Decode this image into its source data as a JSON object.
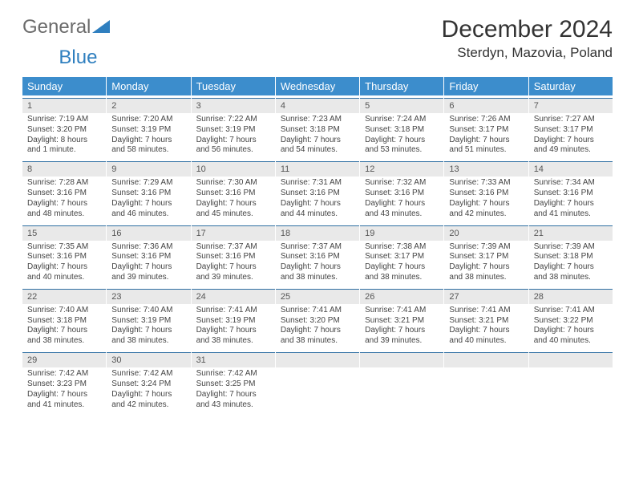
{
  "brand": {
    "part1": "General",
    "part2": "Blue"
  },
  "title": "December 2024",
  "location": "Sterdyn, Mazovia, Poland",
  "colors": {
    "header_bg": "#3c8dcc",
    "header_text": "#ffffff",
    "band_bg": "#e9e9e9",
    "band_border": "#2f6fa3",
    "page_bg": "#ffffff",
    "text": "#333333",
    "logo_gray": "#6b6b6b",
    "logo_blue": "#2f7fbf"
  },
  "typography": {
    "title_fontsize": 30,
    "location_fontsize": 17,
    "header_fontsize": 13,
    "daynum_fontsize": 11,
    "body_fontsize": 10
  },
  "headers": [
    "Sunday",
    "Monday",
    "Tuesday",
    "Wednesday",
    "Thursday",
    "Friday",
    "Saturday"
  ],
  "weeks": [
    [
      {
        "n": "1",
        "sr": "Sunrise: 7:19 AM",
        "ss": "Sunset: 3:20 PM",
        "d1": "Daylight: 8 hours",
        "d2": "and 1 minute."
      },
      {
        "n": "2",
        "sr": "Sunrise: 7:20 AM",
        "ss": "Sunset: 3:19 PM",
        "d1": "Daylight: 7 hours",
        "d2": "and 58 minutes."
      },
      {
        "n": "3",
        "sr": "Sunrise: 7:22 AM",
        "ss": "Sunset: 3:19 PM",
        "d1": "Daylight: 7 hours",
        "d2": "and 56 minutes."
      },
      {
        "n": "4",
        "sr": "Sunrise: 7:23 AM",
        "ss": "Sunset: 3:18 PM",
        "d1": "Daylight: 7 hours",
        "d2": "and 54 minutes."
      },
      {
        "n": "5",
        "sr": "Sunrise: 7:24 AM",
        "ss": "Sunset: 3:18 PM",
        "d1": "Daylight: 7 hours",
        "d2": "and 53 minutes."
      },
      {
        "n": "6",
        "sr": "Sunrise: 7:26 AM",
        "ss": "Sunset: 3:17 PM",
        "d1": "Daylight: 7 hours",
        "d2": "and 51 minutes."
      },
      {
        "n": "7",
        "sr": "Sunrise: 7:27 AM",
        "ss": "Sunset: 3:17 PM",
        "d1": "Daylight: 7 hours",
        "d2": "and 49 minutes."
      }
    ],
    [
      {
        "n": "8",
        "sr": "Sunrise: 7:28 AM",
        "ss": "Sunset: 3:16 PM",
        "d1": "Daylight: 7 hours",
        "d2": "and 48 minutes."
      },
      {
        "n": "9",
        "sr": "Sunrise: 7:29 AM",
        "ss": "Sunset: 3:16 PM",
        "d1": "Daylight: 7 hours",
        "d2": "and 46 minutes."
      },
      {
        "n": "10",
        "sr": "Sunrise: 7:30 AM",
        "ss": "Sunset: 3:16 PM",
        "d1": "Daylight: 7 hours",
        "d2": "and 45 minutes."
      },
      {
        "n": "11",
        "sr": "Sunrise: 7:31 AM",
        "ss": "Sunset: 3:16 PM",
        "d1": "Daylight: 7 hours",
        "d2": "and 44 minutes."
      },
      {
        "n": "12",
        "sr": "Sunrise: 7:32 AM",
        "ss": "Sunset: 3:16 PM",
        "d1": "Daylight: 7 hours",
        "d2": "and 43 minutes."
      },
      {
        "n": "13",
        "sr": "Sunrise: 7:33 AM",
        "ss": "Sunset: 3:16 PM",
        "d1": "Daylight: 7 hours",
        "d2": "and 42 minutes."
      },
      {
        "n": "14",
        "sr": "Sunrise: 7:34 AM",
        "ss": "Sunset: 3:16 PM",
        "d1": "Daylight: 7 hours",
        "d2": "and 41 minutes."
      }
    ],
    [
      {
        "n": "15",
        "sr": "Sunrise: 7:35 AM",
        "ss": "Sunset: 3:16 PM",
        "d1": "Daylight: 7 hours",
        "d2": "and 40 minutes."
      },
      {
        "n": "16",
        "sr": "Sunrise: 7:36 AM",
        "ss": "Sunset: 3:16 PM",
        "d1": "Daylight: 7 hours",
        "d2": "and 39 minutes."
      },
      {
        "n": "17",
        "sr": "Sunrise: 7:37 AM",
        "ss": "Sunset: 3:16 PM",
        "d1": "Daylight: 7 hours",
        "d2": "and 39 minutes."
      },
      {
        "n": "18",
        "sr": "Sunrise: 7:37 AM",
        "ss": "Sunset: 3:16 PM",
        "d1": "Daylight: 7 hours",
        "d2": "and 38 minutes."
      },
      {
        "n": "19",
        "sr": "Sunrise: 7:38 AM",
        "ss": "Sunset: 3:17 PM",
        "d1": "Daylight: 7 hours",
        "d2": "and 38 minutes."
      },
      {
        "n": "20",
        "sr": "Sunrise: 7:39 AM",
        "ss": "Sunset: 3:17 PM",
        "d1": "Daylight: 7 hours",
        "d2": "and 38 minutes."
      },
      {
        "n": "21",
        "sr": "Sunrise: 7:39 AM",
        "ss": "Sunset: 3:18 PM",
        "d1": "Daylight: 7 hours",
        "d2": "and 38 minutes."
      }
    ],
    [
      {
        "n": "22",
        "sr": "Sunrise: 7:40 AM",
        "ss": "Sunset: 3:18 PM",
        "d1": "Daylight: 7 hours",
        "d2": "and 38 minutes."
      },
      {
        "n": "23",
        "sr": "Sunrise: 7:40 AM",
        "ss": "Sunset: 3:19 PM",
        "d1": "Daylight: 7 hours",
        "d2": "and 38 minutes."
      },
      {
        "n": "24",
        "sr": "Sunrise: 7:41 AM",
        "ss": "Sunset: 3:19 PM",
        "d1": "Daylight: 7 hours",
        "d2": "and 38 minutes."
      },
      {
        "n": "25",
        "sr": "Sunrise: 7:41 AM",
        "ss": "Sunset: 3:20 PM",
        "d1": "Daylight: 7 hours",
        "d2": "and 38 minutes."
      },
      {
        "n": "26",
        "sr": "Sunrise: 7:41 AM",
        "ss": "Sunset: 3:21 PM",
        "d1": "Daylight: 7 hours",
        "d2": "and 39 minutes."
      },
      {
        "n": "27",
        "sr": "Sunrise: 7:41 AM",
        "ss": "Sunset: 3:21 PM",
        "d1": "Daylight: 7 hours",
        "d2": "and 40 minutes."
      },
      {
        "n": "28",
        "sr": "Sunrise: 7:41 AM",
        "ss": "Sunset: 3:22 PM",
        "d1": "Daylight: 7 hours",
        "d2": "and 40 minutes."
      }
    ],
    [
      {
        "n": "29",
        "sr": "Sunrise: 7:42 AM",
        "ss": "Sunset: 3:23 PM",
        "d1": "Daylight: 7 hours",
        "d2": "and 41 minutes."
      },
      {
        "n": "30",
        "sr": "Sunrise: 7:42 AM",
        "ss": "Sunset: 3:24 PM",
        "d1": "Daylight: 7 hours",
        "d2": "and 42 minutes."
      },
      {
        "n": "31",
        "sr": "Sunrise: 7:42 AM",
        "ss": "Sunset: 3:25 PM",
        "d1": "Daylight: 7 hours",
        "d2": "and 43 minutes."
      },
      {
        "n": "",
        "sr": "",
        "ss": "",
        "d1": "",
        "d2": "",
        "empty": true
      },
      {
        "n": "",
        "sr": "",
        "ss": "",
        "d1": "",
        "d2": "",
        "empty": true
      },
      {
        "n": "",
        "sr": "",
        "ss": "",
        "d1": "",
        "d2": "",
        "empty": true
      },
      {
        "n": "",
        "sr": "",
        "ss": "",
        "d1": "",
        "d2": "",
        "empty": true
      }
    ]
  ]
}
